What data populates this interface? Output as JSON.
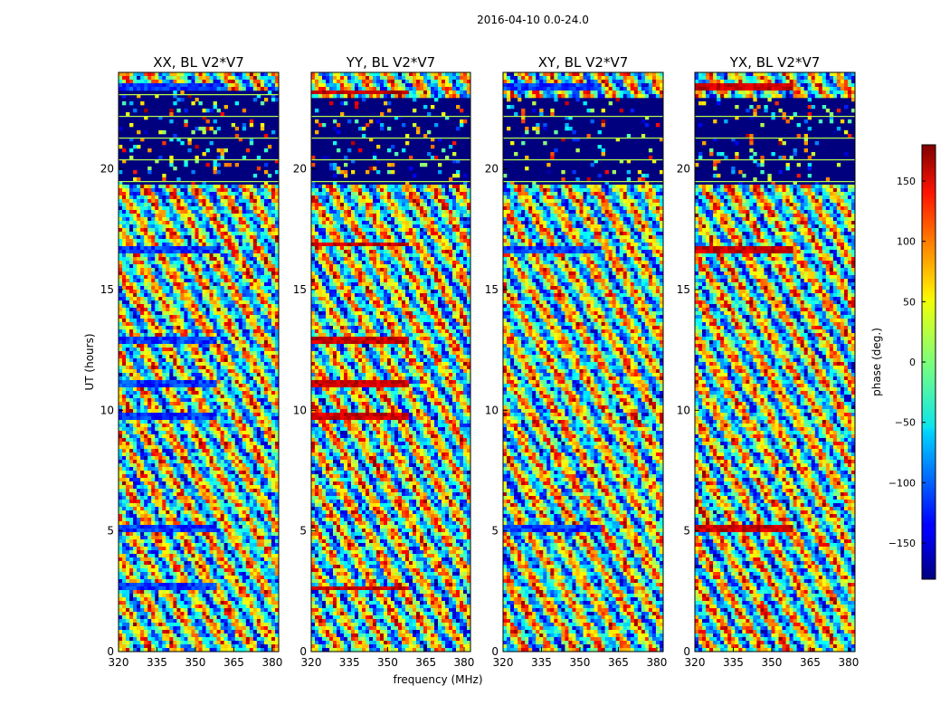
{
  "figure": {
    "suptitle": "2016-04-10 0.0-24.0"
  },
  "chart_data": [
    {
      "type": "heatmap",
      "title": "XX, BL V2*V7",
      "xlabel": "",
      "ylabel": "UT (hours)",
      "xlim": [
        320,
        382.5
      ],
      "ylim": [
        0,
        24
      ],
      "xticks": [
        320,
        335,
        350,
        365,
        380
      ],
      "yticks": [
        0,
        5,
        10,
        15,
        20
      ],
      "value": "phase",
      "value_range": [
        -180,
        180
      ],
      "colormap": "jet",
      "empty_bands_hours": [
        [
          19.4,
          23.0
        ],
        [
          22.3,
          23.3
        ]
      ],
      "bands_hours": [
        [
          2.5,
          2.8
        ],
        [
          5.0,
          5.3
        ],
        [
          9.6,
          9.9
        ],
        [
          10.9,
          11.2
        ],
        [
          12.8,
          13.0
        ],
        [
          16.5,
          16.8
        ],
        [
          23.3,
          23.6
        ]
      ]
    },
    {
      "type": "heatmap",
      "title": "YY, BL V2*V7",
      "xlabel": "frequency (MHz)",
      "ylabel": "",
      "xlim": [
        320,
        382.5
      ],
      "ylim": [
        0,
        24
      ],
      "xticks": [
        320,
        335,
        350,
        365,
        380
      ],
      "yticks": [
        0,
        5,
        10,
        15,
        20
      ],
      "value": "phase",
      "value_range": [
        -180,
        180
      ],
      "colormap": "jet",
      "empty_bands_hours": [
        [
          19.4,
          23.0
        ]
      ],
      "bands_hours": [
        [
          2.5,
          2.7
        ],
        [
          9.6,
          9.9
        ],
        [
          10.9,
          11.2
        ],
        [
          12.8,
          13.0
        ],
        [
          16.8,
          17.0
        ],
        [
          23.1,
          23.3
        ]
      ]
    },
    {
      "type": "heatmap",
      "title": "XY, BL V2*V7",
      "xlabel": "",
      "ylabel": "",
      "xlim": [
        320,
        382.5
      ],
      "ylim": [
        0,
        24
      ],
      "xticks": [
        320,
        335,
        350,
        365,
        380
      ],
      "yticks": [
        0,
        5,
        10,
        15,
        20
      ],
      "value": "phase",
      "value_range": [
        -180,
        180
      ],
      "colormap": "jet",
      "empty_bands_hours": [
        [
          19.4,
          23.0
        ]
      ],
      "bands_hours": [
        [
          5.0,
          5.3
        ],
        [
          16.5,
          16.8
        ],
        [
          23.3,
          23.6
        ]
      ]
    },
    {
      "type": "heatmap",
      "title": "YX, BL V2*V7",
      "xlabel": "",
      "ylabel": "",
      "xlim": [
        320,
        382.5
      ],
      "ylim": [
        0,
        24
      ],
      "xticks": [
        320,
        335,
        350,
        365,
        380
      ],
      "yticks": [
        0,
        5,
        10,
        15,
        20
      ],
      "value": "phase",
      "value_range": [
        -180,
        180
      ],
      "colormap": "jet",
      "empty_bands_hours": [
        [
          19.4,
          23.0
        ]
      ],
      "bands_hours": [
        [
          5.0,
          5.3
        ],
        [
          16.5,
          16.8
        ],
        [
          23.3,
          23.6
        ]
      ]
    }
  ],
  "colorbar": {
    "label": "phase (deg.)",
    "range": [
      -180,
      180
    ],
    "ticks": [
      150,
      100,
      50,
      0,
      -50,
      -100,
      -150
    ],
    "tick_labels": [
      "150",
      "100",
      "50",
      "0",
      "−50",
      "−100",
      "−150"
    ]
  }
}
